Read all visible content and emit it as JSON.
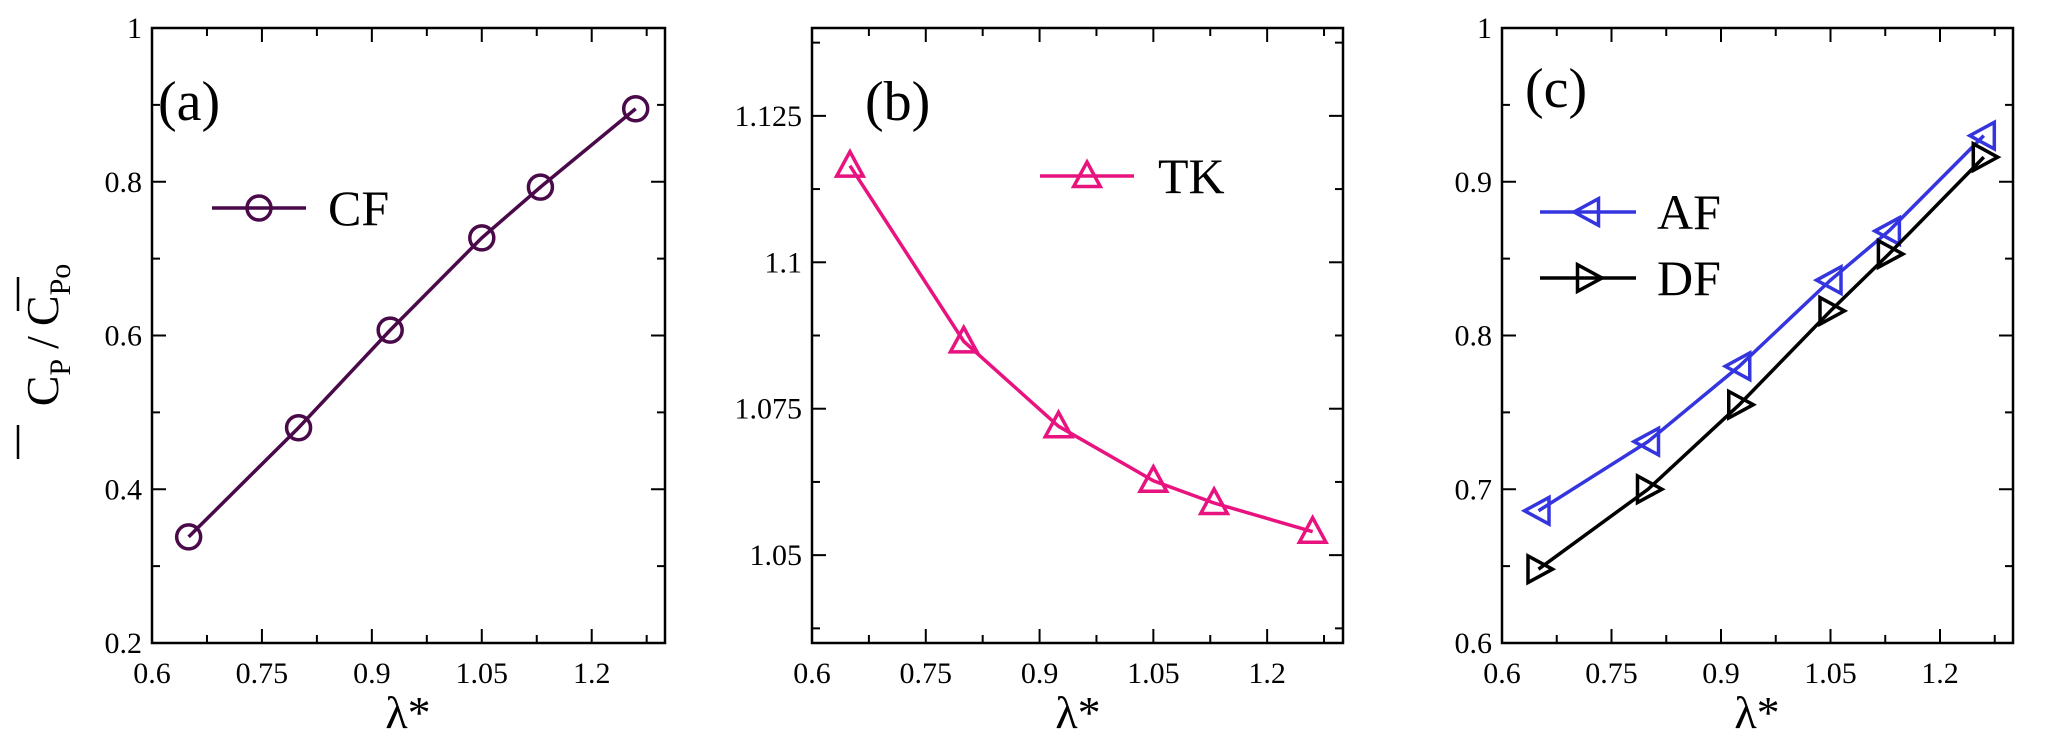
{
  "chart_data": [
    {
      "type": "line",
      "panel_label": "(a)",
      "xlabel": "λ*",
      "ylabel": "C_P / C_Po",
      "ylabel_parts": {
        "c1": "C",
        "sub1": "P",
        "slash": "/",
        "c2": "C",
        "sub2": "Po"
      },
      "xlim": [
        0.6,
        1.3
      ],
      "ylim": [
        0.2,
        1.0
      ],
      "xticks": [
        0.6,
        0.75,
        0.9,
        1.05,
        1.2
      ],
      "xtick_labels": [
        "0.6",
        "0.75",
        "0.9",
        "1.05",
        "1.2"
      ],
      "yticks": [
        0.2,
        0.4,
        0.6,
        0.8,
        1.0
      ],
      "ytick_labels": [
        "0.2",
        "0.4",
        "0.6",
        "0.8",
        "1"
      ],
      "x": [
        0.65,
        0.8,
        0.925,
        1.05,
        1.13,
        1.26
      ],
      "series": [
        {
          "name": "CF",
          "color": "#4a0a4a",
          "marker": "circle",
          "values": [
            0.338,
            0.48,
            0.607,
            0.727,
            0.793,
            0.895
          ]
        }
      ],
      "legend_position": "upper-left"
    },
    {
      "type": "line",
      "panel_label": "(b)",
      "xlabel": "λ*",
      "ylabel": "",
      "xlim": [
        0.6,
        1.3
      ],
      "ylim": [
        1.035,
        1.14
      ],
      "xticks": [
        0.6,
        0.75,
        0.9,
        1.05,
        1.2
      ],
      "xtick_labels": [
        "0.6",
        "0.75",
        "0.9",
        "1.05",
        "1.2"
      ],
      "yticks": [
        1.05,
        1.075,
        1.1,
        1.125
      ],
      "ytick_labels": [
        "1.05",
        "1.075",
        "1.1",
        "1.125"
      ],
      "x": [
        0.65,
        0.8,
        0.925,
        1.05,
        1.13,
        1.26
      ],
      "series": [
        {
          "name": "TK",
          "color": "#e8137f",
          "marker": "triangle-up",
          "values": [
            1.1165,
            1.0865,
            1.072,
            1.0627,
            1.0589,
            1.054
          ]
        }
      ],
      "legend_position": "upper-right"
    },
    {
      "type": "line",
      "panel_label": "(c)",
      "xlabel": "λ*",
      "ylabel": "",
      "xlim": [
        0.6,
        1.3
      ],
      "ylim": [
        0.6,
        1.0
      ],
      "xticks": [
        0.6,
        0.75,
        0.9,
        1.05,
        1.2
      ],
      "xtick_labels": [
        "0.6",
        "0.75",
        "0.9",
        "1.05",
        "1.2"
      ],
      "yticks": [
        0.6,
        0.7,
        0.8,
        0.9,
        1.0
      ],
      "ytick_labels": [
        "0.6",
        "0.7",
        "0.8",
        "0.9",
        "1"
      ],
      "x": [
        0.65,
        0.8,
        0.925,
        1.05,
        1.13,
        1.26
      ],
      "series": [
        {
          "name": "AF",
          "color": "#3535e0",
          "marker": "triangle-left",
          "values": [
            0.686,
            0.731,
            0.78,
            0.836,
            0.868,
            0.93
          ]
        },
        {
          "name": "DF",
          "color": "#000000",
          "marker": "triangle-right",
          "values": [
            0.648,
            0.7,
            0.755,
            0.816,
            0.853,
            0.916
          ]
        }
      ],
      "legend_position": "upper-left"
    }
  ]
}
